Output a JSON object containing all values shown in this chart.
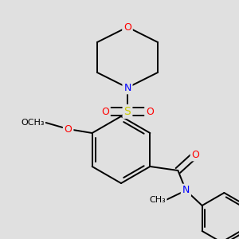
{
  "bg_color": "#e0e0e0",
  "bond_color": "#000000",
  "atom_colors": {
    "O": "#ff0000",
    "N": "#0000ff",
    "S": "#cccc00",
    "C": "#000000"
  },
  "line_width": 1.4,
  "font_size": 8.5
}
